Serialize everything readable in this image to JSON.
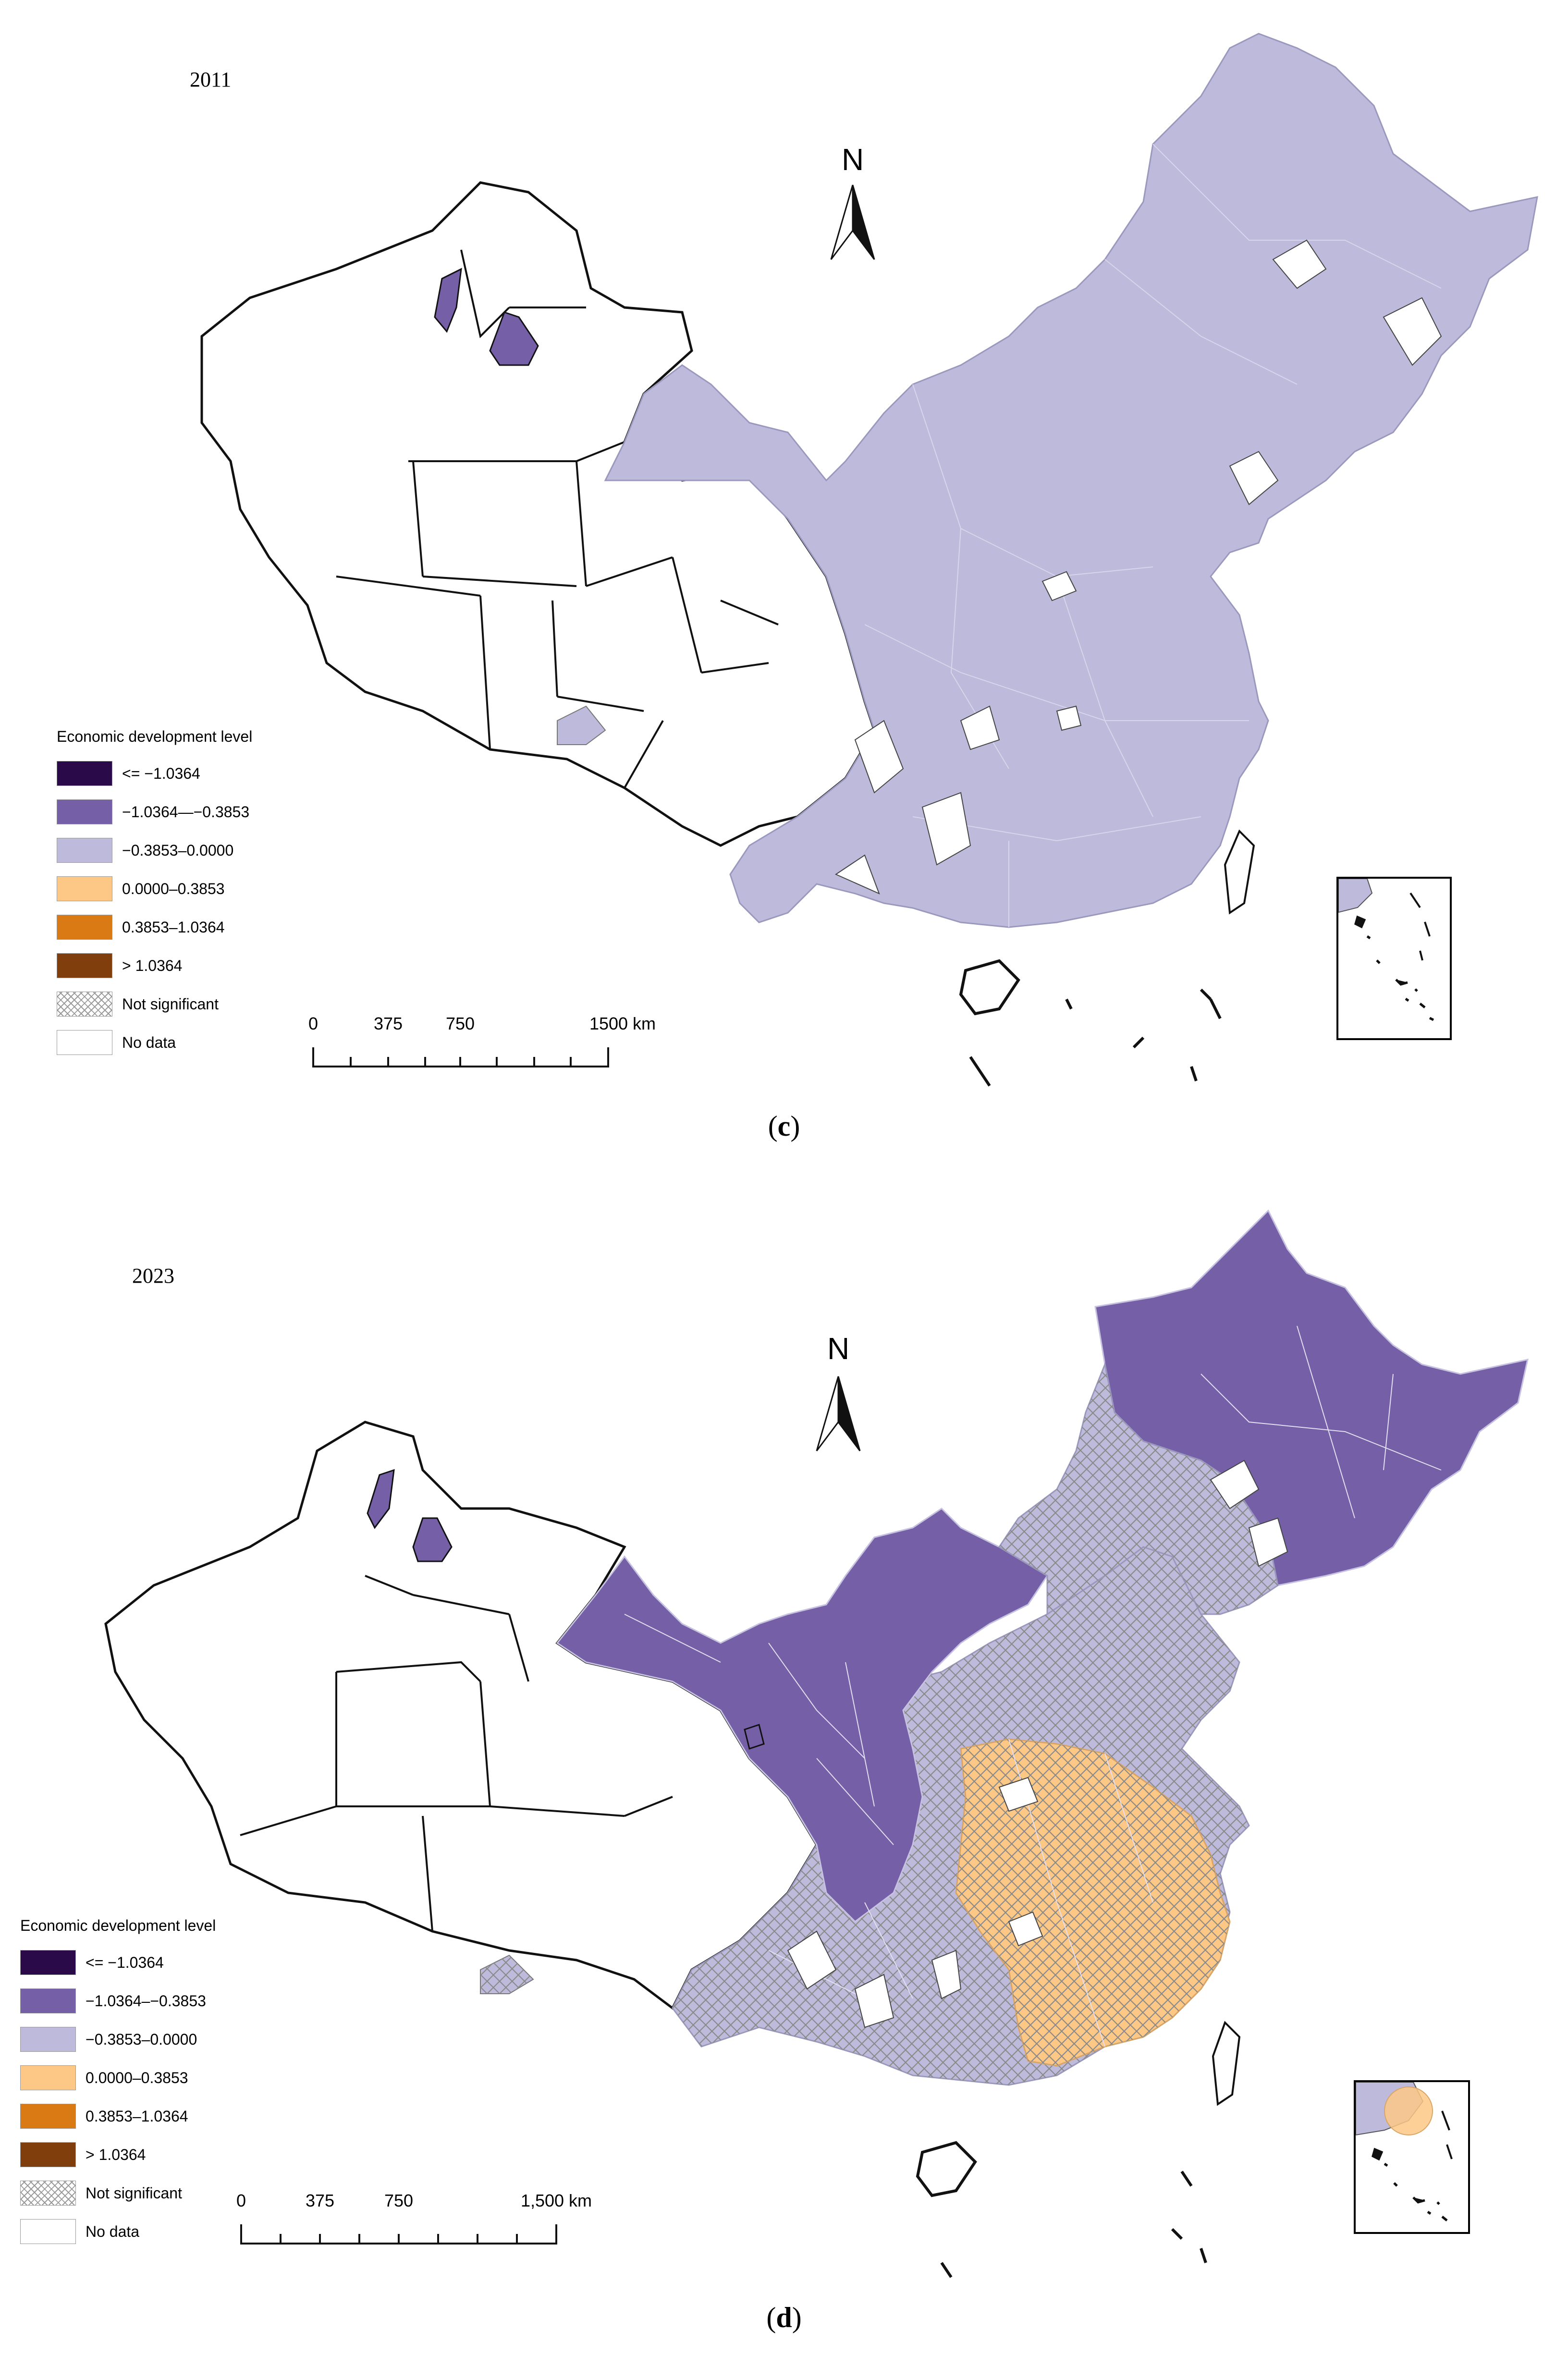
{
  "colors": {
    "class_1": "#2b0a4a",
    "class_2": "#7560a8",
    "class_3": "#bdbadb",
    "class_4": "#fdc886",
    "class_5": "#d97a14",
    "class_6": "#7f3e0b",
    "no_data": "#ffffff",
    "outline": "#111111"
  },
  "panels": [
    {
      "year": "2011",
      "caption": {
        "open": "(",
        "letter": "c",
        "close": ")"
      },
      "legend": {
        "title": "Economic development level",
        "items": [
          {
            "label": "<= −1.0364",
            "class": "class_1"
          },
          {
            "label": "−1.0364—−0.3853",
            "class": "class_2"
          },
          {
            "label": "−0.3853–0.0000",
            "class": "class_3"
          },
          {
            "label": "0.0000–0.3853",
            "class": "class_4"
          },
          {
            "label": "0.3853–1.0364",
            "class": "class_5"
          },
          {
            "label": "> 1.0364",
            "class": "class_6"
          },
          {
            "label": "Not significant",
            "class": "hatch"
          },
          {
            "label": "No data",
            "class": "no_data"
          }
        ]
      },
      "scale": {
        "labels": [
          "0",
          "375",
          "750",
          "1500 km"
        ]
      },
      "north": "N"
    },
    {
      "year": "2023",
      "caption": {
        "open": "(",
        "letter": "d",
        "close": ")"
      },
      "legend": {
        "title": "Economic development level",
        "items": [
          {
            "label": "<= −1.0364",
            "class": "class_1"
          },
          {
            "label": "−1.0364–−0.3853",
            "class": "class_2"
          },
          {
            "label": "−0.3853–0.0000",
            "class": "class_3"
          },
          {
            "label": "0.0000–0.3853",
            "class": "class_4"
          },
          {
            "label": "0.3853–1.0364",
            "class": "class_5"
          },
          {
            "label": "> 1.0364",
            "class": "class_6"
          },
          {
            "label": "Not significant",
            "class": "hatch"
          },
          {
            "label": "No data",
            "class": "no_data"
          }
        ]
      },
      "scale": {
        "labels": [
          "0",
          "375",
          "750",
          "1,500 km"
        ]
      },
      "north": "N"
    }
  ]
}
